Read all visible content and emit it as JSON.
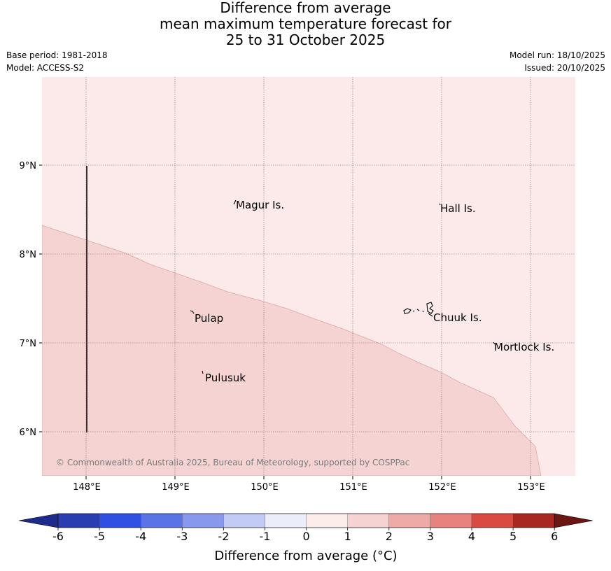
{
  "title": {
    "line1": "Difference from average",
    "line2": "mean maximum temperature forecast for",
    "line3": "25 to 31 October 2025"
  },
  "meta": {
    "base_period": "Base period: 1981-2018",
    "model": "Model: ACCESS-S2",
    "model_run": "Model run: 18/10/2025",
    "issued": "Issued: 20/10/2025"
  },
  "map": {
    "lat_labels": [
      "9°N",
      "8°N",
      "7°N",
      "6°N"
    ],
    "lon_labels": [
      "148°E",
      "149°E",
      "150°E",
      "151°E",
      "152°E",
      "153°E"
    ],
    "places": [
      {
        "name": "Magur Is.",
        "lon": 149.7,
        "lat": 8.55
      },
      {
        "name": "Hall Is.",
        "lon": 152.0,
        "lat": 8.5
      },
      {
        "name": "Pulap",
        "lon": 149.2,
        "lat": 7.28
      },
      {
        "name": "Chuuk Is.",
        "lon": 151.9,
        "lat": 7.28
      },
      {
        "name": "Mortlock Is.",
        "lon": 152.6,
        "lat": 6.95
      },
      {
        "name": "Pulusuk",
        "lon": 149.3,
        "lat": 6.61
      }
    ],
    "copyright": "© Commonwealth of Australia 2025, Bureau of Meteorology, supported by COSPPac",
    "region_colors": {
      "anomaly_0_1": "#fbeae9",
      "anomaly_1_2": "#f5d3d2"
    }
  },
  "colorbar": {
    "ticks": [
      "-6",
      "-5",
      "-4",
      "-3",
      "-2",
      "-1",
      "0",
      "1",
      "2",
      "3",
      "4",
      "5",
      "6"
    ],
    "label": "Difference from average (°C)",
    "colors": [
      "#1f2b8c",
      "#2a3db1",
      "#3050e3",
      "#5a73e6",
      "#8898ec",
      "#c2cbf3",
      "#ebeefa",
      "#fcecea",
      "#f5d3d2",
      "#eeaaa6",
      "#e8827e",
      "#db4a40",
      "#a82820",
      "#6b1612"
    ]
  }
}
